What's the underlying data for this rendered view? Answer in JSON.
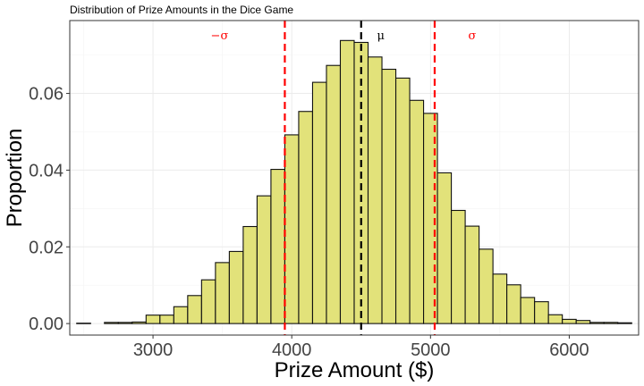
{
  "chart_data": {
    "type": "bar",
    "title": "Distribution of Prize Amounts in the Dice Game",
    "xlabel": "Prize Amount ($)",
    "ylabel": "Proportion",
    "bin_width": 100,
    "xlim": [
      2400,
      6500
    ],
    "ylim": [
      -0.003,
      0.079
    ],
    "x_ticks": [
      3000,
      4000,
      5000,
      6000
    ],
    "x_tick_labels": [
      "3000",
      "4000",
      "5000",
      "6000"
    ],
    "y_ticks": [
      0.0,
      0.02,
      0.04,
      0.06
    ],
    "y_tick_labels": [
      "0.00",
      "0.02",
      "0.04",
      "0.06"
    ],
    "grid": true,
    "bins": [
      {
        "left": 2450,
        "value": 0.0001
      },
      {
        "left": 2650,
        "value": 0.0003
      },
      {
        "left": 2750,
        "value": 0.0003
      },
      {
        "left": 2850,
        "value": 0.0004
      },
      {
        "left": 2950,
        "value": 0.0022
      },
      {
        "left": 3050,
        "value": 0.0022
      },
      {
        "left": 3150,
        "value": 0.0044
      },
      {
        "left": 3250,
        "value": 0.0073
      },
      {
        "left": 3350,
        "value": 0.0114
      },
      {
        "left": 3450,
        "value": 0.0159
      },
      {
        "left": 3550,
        "value": 0.0188
      },
      {
        "left": 3650,
        "value": 0.0253
      },
      {
        "left": 3750,
        "value": 0.0333
      },
      {
        "left": 3850,
        "value": 0.0402
      },
      {
        "left": 3950,
        "value": 0.0492
      },
      {
        "left": 4050,
        "value": 0.0553
      },
      {
        "left": 4150,
        "value": 0.0629
      },
      {
        "left": 4250,
        "value": 0.0673
      },
      {
        "left": 4350,
        "value": 0.0738
      },
      {
        "left": 4450,
        "value": 0.0733
      },
      {
        "left": 4550,
        "value": 0.0695
      },
      {
        "left": 4650,
        "value": 0.0663
      },
      {
        "left": 4750,
        "value": 0.064
      },
      {
        "left": 4850,
        "value": 0.0582
      },
      {
        "left": 4950,
        "value": 0.0548
      },
      {
        "left": 5050,
        "value": 0.0393
      },
      {
        "left": 5150,
        "value": 0.0295
      },
      {
        "left": 5250,
        "value": 0.0254
      },
      {
        "left": 5350,
        "value": 0.0194
      },
      {
        "left": 5450,
        "value": 0.0129
      },
      {
        "left": 5550,
        "value": 0.0101
      },
      {
        "left": 5650,
        "value": 0.0068
      },
      {
        "left": 5750,
        "value": 0.0057
      },
      {
        "left": 5850,
        "value": 0.0023
      },
      {
        "left": 5950,
        "value": 0.0011
      },
      {
        "left": 6050,
        "value": 0.0008
      },
      {
        "left": 6150,
        "value": 0.0003
      },
      {
        "left": 6250,
        "value": 0.0003
      },
      {
        "left": 6350,
        "value": 0.0002
      }
    ],
    "reference_lines": [
      {
        "label": "−σ",
        "x": 3950,
        "color": "#ff0000",
        "style": "dashed"
      },
      {
        "label": "μ",
        "x": 4500,
        "color": "#000000",
        "style": "dashed"
      },
      {
        "label": "σ",
        "x": 5030,
        "color": "#ff0000",
        "style": "dashed"
      }
    ]
  }
}
